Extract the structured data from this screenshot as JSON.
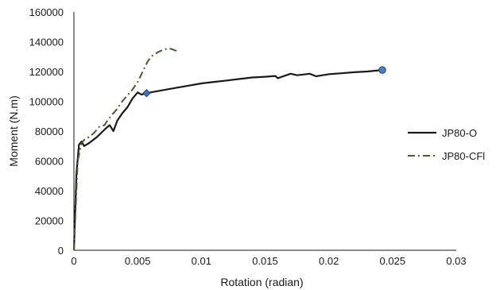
{
  "chart_data": {
    "type": "line",
    "title": "",
    "xlabel": "Rotation (radian)",
    "ylabel": "Moment (N.m)",
    "xlim": [
      0,
      0.03
    ],
    "ylim": [
      0,
      160000
    ],
    "x_ticks": [
      "0",
      "0.005",
      "0.01",
      "0.015",
      "0.02",
      "0.025",
      "0.03"
    ],
    "y_ticks": [
      "0",
      "20000",
      "40000",
      "60000",
      "80000",
      "100000",
      "120000",
      "140000",
      "160000"
    ],
    "grid": false,
    "legend_position": "right",
    "series": [
      {
        "name": "JP80-O",
        "style": "solid",
        "color": "#1a1a1a",
        "x": [
          0,
          0.0002,
          0.0004,
          0.0006,
          0.0008,
          0.0012,
          0.0018,
          0.0024,
          0.0028,
          0.0031,
          0.0034,
          0.0038,
          0.0042,
          0.0046,
          0.005,
          0.0053,
          0.0057,
          0.007,
          0.008,
          0.009,
          0.01,
          0.011,
          0.012,
          0.013,
          0.014,
          0.015,
          0.0158,
          0.016,
          0.0165,
          0.017,
          0.0175,
          0.018,
          0.0185,
          0.019,
          0.0195,
          0.02,
          0.021,
          0.022,
          0.023,
          0.0242
        ],
        "y": [
          0,
          52000,
          71000,
          73000,
          70000,
          72000,
          76000,
          81000,
          84000,
          80000,
          87000,
          92000,
          96000,
          102000,
          106000,
          104500,
          105500,
          107500,
          109000,
          110500,
          112000,
          113000,
          114000,
          115000,
          116000,
          116500,
          117000,
          115500,
          117000,
          118500,
          117500,
          118000,
          118500,
          116800,
          117500,
          118200,
          118800,
          119500,
          120000,
          121000
        ],
        "markers": [
          {
            "x": 0.0057,
            "y": 105500,
            "shape": "diamond"
          },
          {
            "x": 0.0242,
            "y": 121000,
            "shape": "circle"
          }
        ]
      },
      {
        "name": "JP80-CFl",
        "style": "dash-dot",
        "color": "#4a5a2e",
        "x": [
          0,
          0.0003,
          0.0006,
          0.0009,
          0.0012,
          0.0016,
          0.002,
          0.0024,
          0.0027,
          0.003,
          0.0034,
          0.0038,
          0.0042,
          0.0046,
          0.005,
          0.0054,
          0.0058,
          0.0062,
          0.0066,
          0.007,
          0.0074,
          0.0077,
          0.008,
          0.0082
        ],
        "y": [
          0,
          60000,
          72000,
          75000,
          76000,
          79000,
          83000,
          84000,
          88000,
          91000,
          95000,
          100000,
          104000,
          108000,
          113000,
          120000,
          127000,
          131000,
          133000,
          134500,
          135500,
          135000,
          134000,
          133000
        ]
      }
    ]
  }
}
